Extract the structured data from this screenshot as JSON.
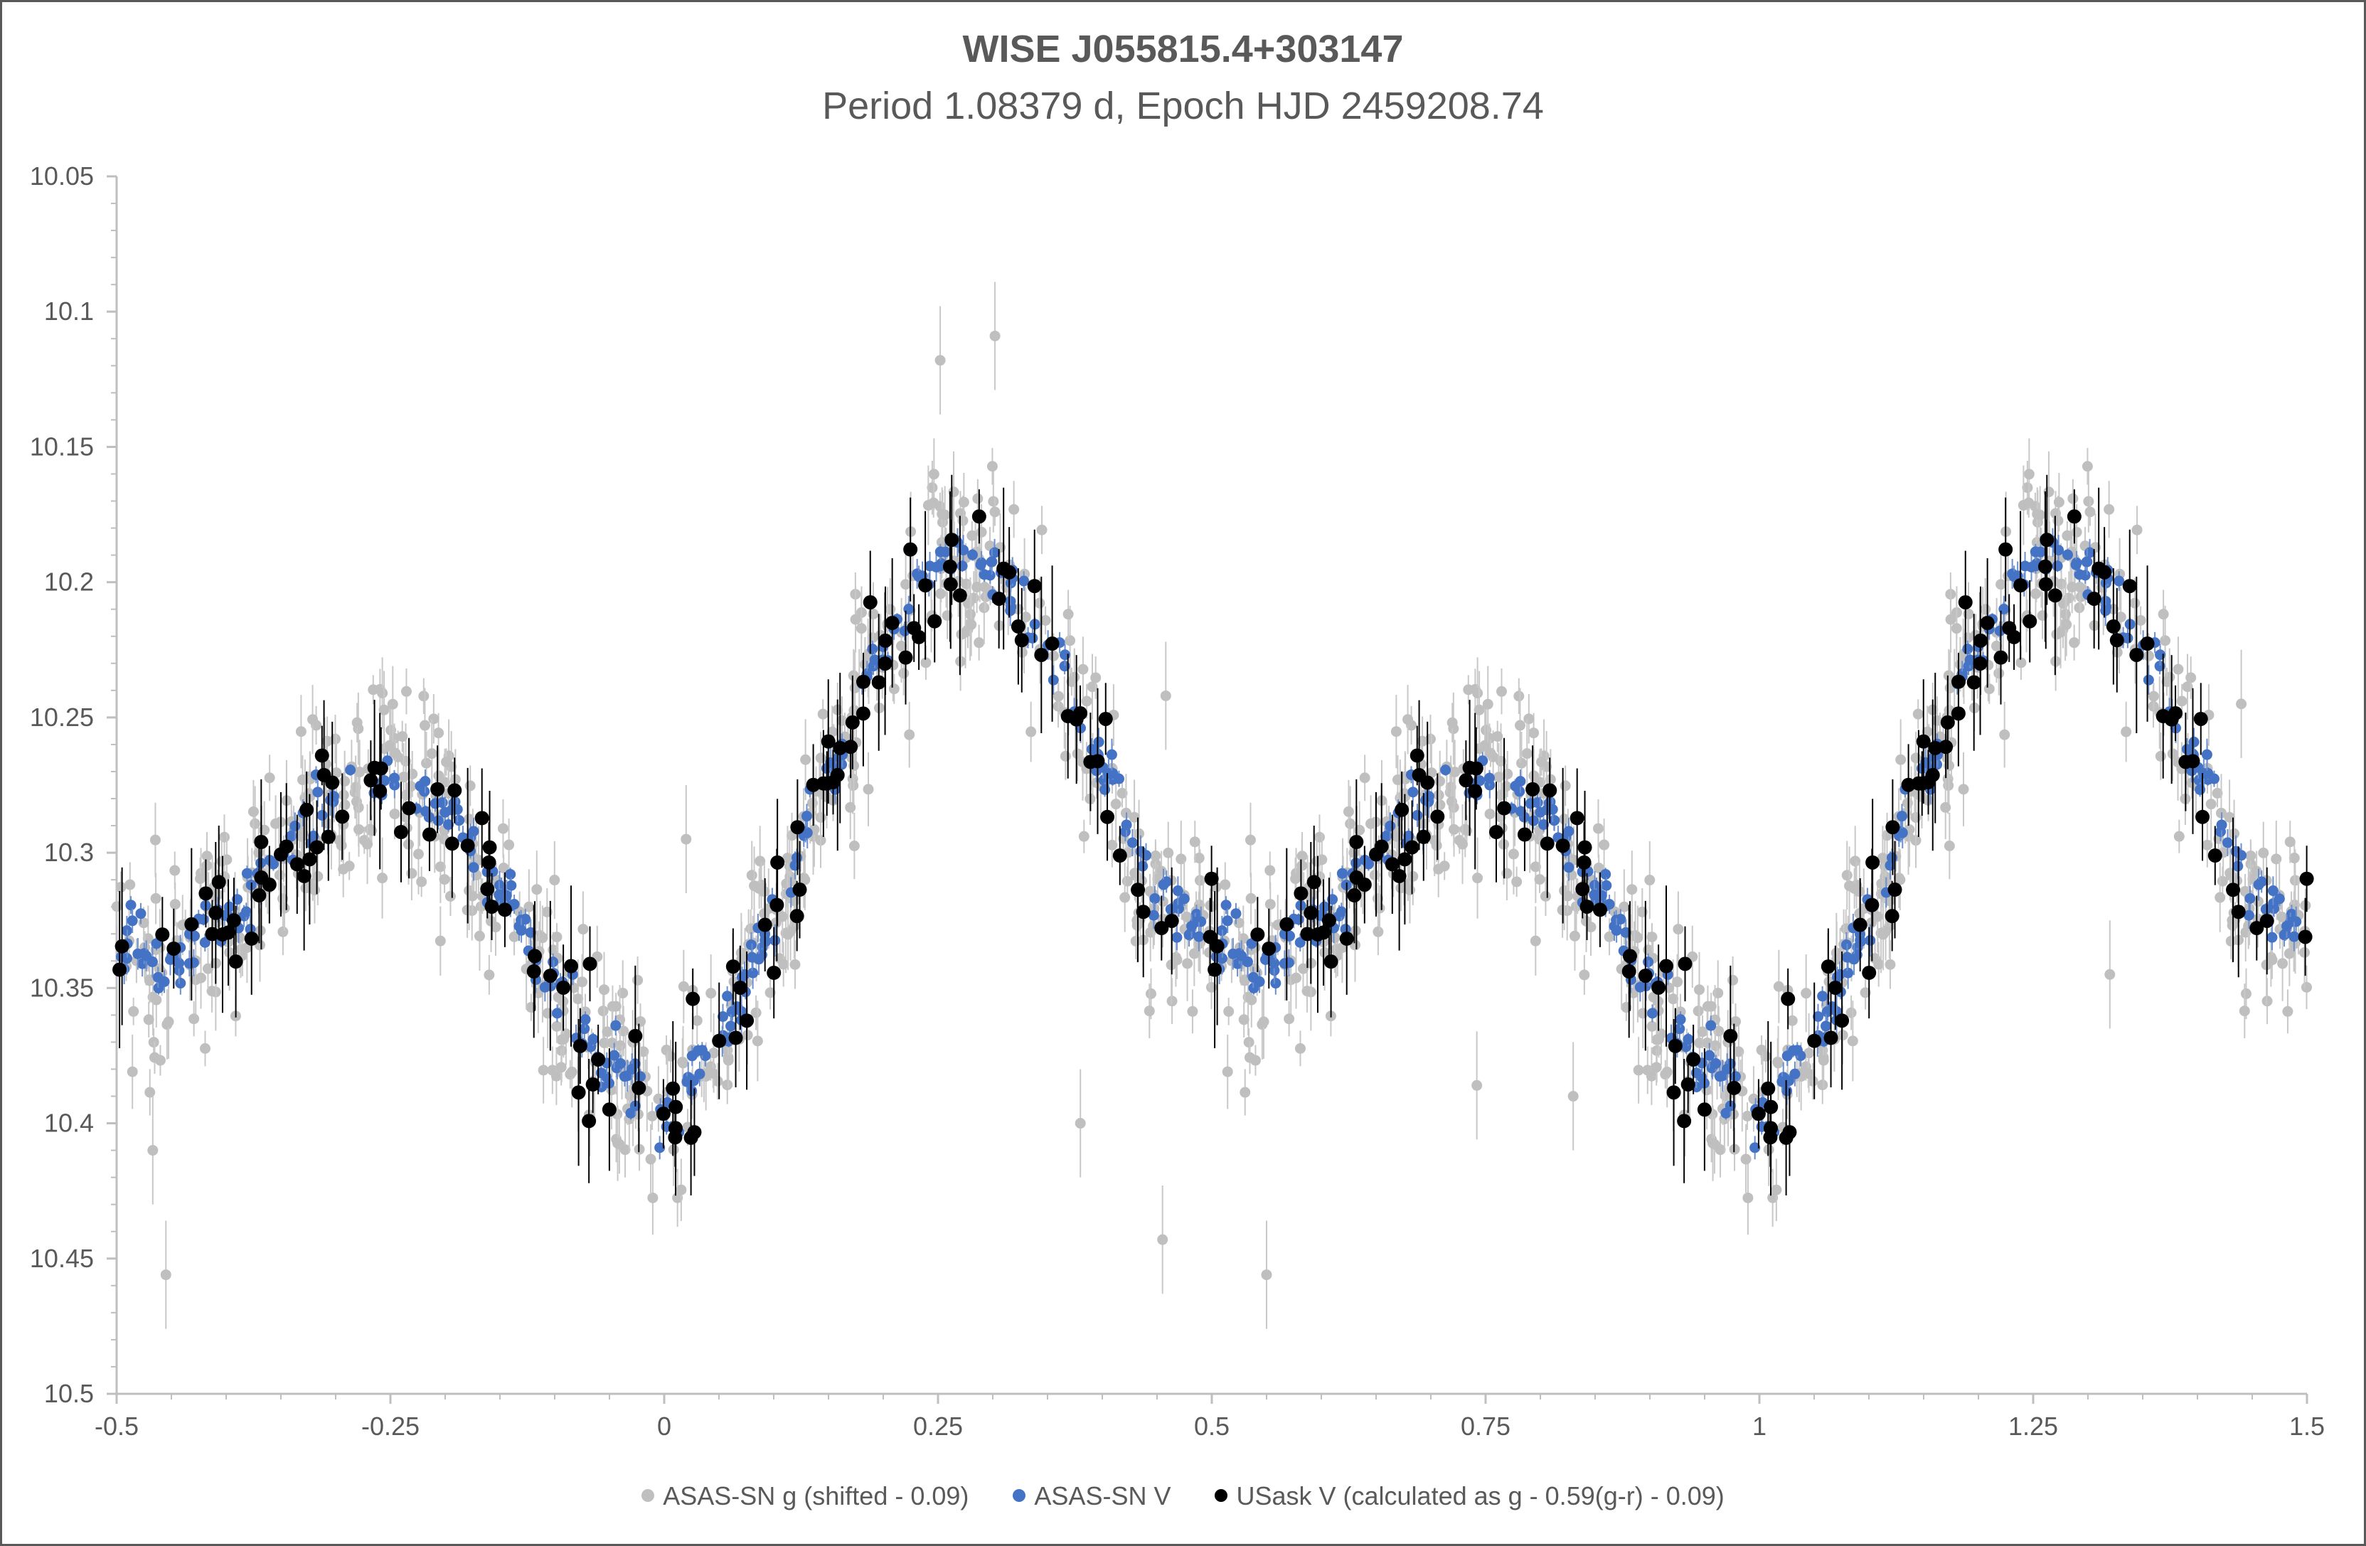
{
  "chart_data": {
    "type": "scatter",
    "title": "WISE J055815.4+303147",
    "subtitle": "Period 1.08379 d, Epoch HJD 2459208.74",
    "xlabel": "",
    "ylabel": "",
    "xlim": [
      -0.5,
      1.5
    ],
    "ylim": [
      10.05,
      10.5
    ],
    "y_reversed": true,
    "x_ticks": [
      "-0.5",
      "-0.25",
      "0",
      "0.25",
      "0.5",
      "0.75",
      "1",
      "1.25",
      "1.5"
    ],
    "y_ticks": [
      "10.05",
      "10.1",
      "10.15",
      "10.2",
      "10.25",
      "10.3",
      "10.35",
      "10.4",
      "10.45",
      "10.5"
    ],
    "grid": false,
    "legend_position": "bottom",
    "light_curve_model": {
      "phase": [
        0,
        0.05,
        0.1,
        0.15,
        0.2,
        0.25,
        0.3,
        0.35,
        0.4,
        0.45,
        0.5,
        0.55,
        0.6,
        0.65,
        0.7,
        0.75,
        0.8,
        0.85,
        0.9,
        0.95,
        1.0
      ],
      "magnitude": [
        10.395,
        10.37,
        10.325,
        10.27,
        10.225,
        10.19,
        10.195,
        10.225,
        10.27,
        10.315,
        10.335,
        10.34,
        10.325,
        10.3,
        10.28,
        10.27,
        10.285,
        10.315,
        10.35,
        10.38,
        10.395
      ]
    },
    "series": [
      {
        "name": "ASAS-SN g (shifted - 0.09)",
        "color": "#bfbfbf",
        "count_per_cycle": 620,
        "scatter": 0.018,
        "error": 0.01,
        "marker_size": "small"
      },
      {
        "name": "ASAS-SN V",
        "color": "#4472c4",
        "count_per_cycle": 300,
        "scatter": 0.006,
        "error": 0.004,
        "marker_size": "small"
      },
      {
        "name": "USask V (calculated as g - 0.59(g-r) - 0.09)",
        "color": "#000000",
        "count_per_cycle": 130,
        "scatter": 0.012,
        "error": 0.02,
        "marker_size": "large"
      }
    ],
    "outliers_g": [
      {
        "x": 0.252,
        "y": 10.118
      },
      {
        "x": 0.302,
        "y": 10.109
      },
      {
        "x": -0.455,
        "y": 10.456
      },
      {
        "x": -0.467,
        "y": 10.41
      },
      {
        "x": -0.31,
        "y": 10.27
      },
      {
        "x": 0.455,
        "y": 10.443
      },
      {
        "x": 0.458,
        "y": 10.242
      },
      {
        "x": 0.55,
        "y": 10.456
      },
      {
        "x": 0.38,
        "y": 10.4
      },
      {
        "x": 0.742,
        "y": 10.386
      },
      {
        "x": 0.02,
        "y": 10.295
      },
      {
        "x": 0.83,
        "y": 10.39
      },
      {
        "x": 1.32,
        "y": 10.345
      },
      {
        "x": 1.44,
        "y": 10.245
      }
    ]
  },
  "legend": [
    {
      "label": "ASAS-SN g (shifted - 0.09)",
      "color": "#bfbfbf"
    },
    {
      "label": "ASAS-SN V",
      "color": "#4472c4"
    },
    {
      "label": "USask V (calculated as g - 0.59(g-r) - 0.09)",
      "color": "#000000"
    }
  ]
}
